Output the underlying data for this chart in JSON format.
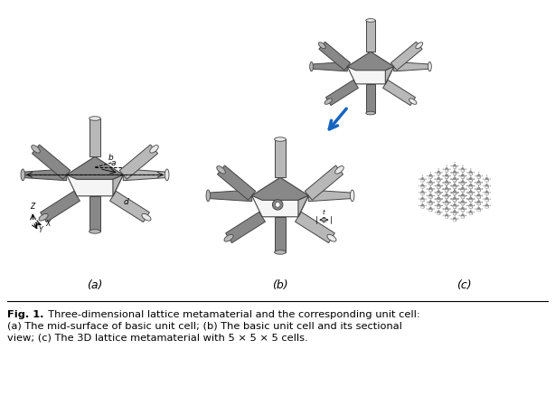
{
  "figure_width": 6.14,
  "figure_height": 4.49,
  "dpi": 100,
  "background_color": "#ffffff",
  "label_a": "(a)",
  "label_b": "(b)",
  "label_c": "(c)",
  "caption_bold": "Fig. 1.",
  "caption_line1": "  Three-dimensional lattice metamaterial and the corresponding unit cell:",
  "caption_line2": "(a) The mid-surface of basic unit cell; (b) The basic unit cell and its sectional",
  "caption_line3": "view; (c) The 3D lattice metamaterial with 5 × 5 × 5 cells.",
  "caption_fontsize": 8.2,
  "label_fontsize": 9,
  "text_color": "#000000",
  "arrow_color": "#1565C0"
}
